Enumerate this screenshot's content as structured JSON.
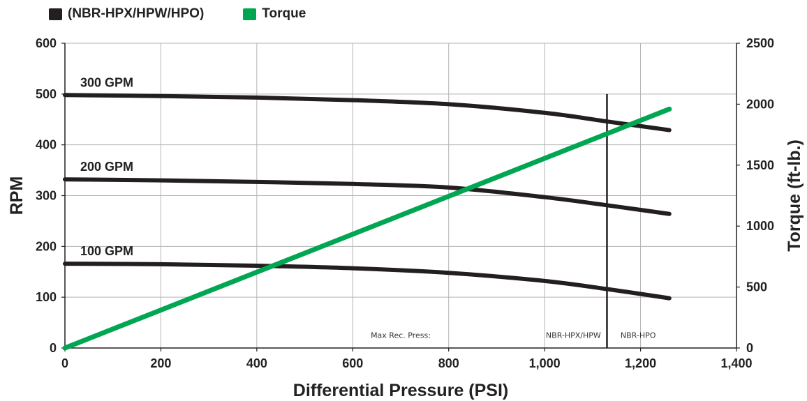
{
  "legend": [
    {
      "label": "(NBR-HPX/HPW/HPO)",
      "color": "#231f20"
    },
    {
      "label": "Torque",
      "color": "#00a651"
    }
  ],
  "chart_data": {
    "type": "line",
    "xlabel": "Differential Pressure (PSI)",
    "ylabel": "RPM",
    "y2label": "Torque (ft-lb.)",
    "xlim": [
      0,
      1400
    ],
    "ylim": [
      0,
      600
    ],
    "y2lim": [
      0,
      2500
    ],
    "x_ticks": [
      0,
      200,
      400,
      600,
      800,
      1000,
      1200,
      1400
    ],
    "x_tick_labels": [
      "0",
      "200",
      "400",
      "600",
      "800",
      "1,000",
      "1,200",
      "1,400"
    ],
    "y_ticks": [
      0,
      100,
      200,
      300,
      400,
      500,
      600
    ],
    "y_tick_labels": [
      "0",
      "100",
      "200",
      "300",
      "400",
      "500",
      "600"
    ],
    "y2_ticks": [
      0,
      500,
      1000,
      1500,
      2000,
      2500
    ],
    "y2_tick_labels": [
      "0",
      "500",
      "1000",
      "1500",
      "2000",
      "2500"
    ],
    "grid": true,
    "series": [
      {
        "name": "300 GPM",
        "axis": "left",
        "color": "#231f20",
        "x": [
          0,
          200,
          400,
          600,
          800,
          1000,
          1130,
          1260
        ],
        "y": [
          498,
          496,
          493,
          488,
          480,
          463,
          446,
          429
        ]
      },
      {
        "name": "200 GPM",
        "axis": "left",
        "color": "#231f20",
        "x": [
          0,
          200,
          400,
          600,
          800,
          1000,
          1130,
          1260
        ],
        "y": [
          332,
          330,
          327,
          323,
          316,
          297,
          281,
          264
        ]
      },
      {
        "name": "100 GPM",
        "axis": "left",
        "color": "#231f20",
        "x": [
          0,
          200,
          400,
          600,
          800,
          1000,
          1130,
          1260
        ],
        "y": [
          166,
          165,
          162,
          157,
          148,
          132,
          116,
          98
        ]
      },
      {
        "name": "Torque",
        "axis": "right",
        "color": "#00a651",
        "x": [
          0,
          1260
        ],
        "y": [
          0,
          1960
        ]
      }
    ],
    "annotations": {
      "max_pressure_x": 1130,
      "max_pressure_line_top": 500,
      "labels": [
        {
          "text": "Max Rec. Press:",
          "x": 700,
          "y": 20
        },
        {
          "text": "NBR-HPX/HPW",
          "x": 1060,
          "y": 20
        },
        {
          "text": "NBR-HPO",
          "x": 1195,
          "y": 20
        }
      ]
    }
  }
}
